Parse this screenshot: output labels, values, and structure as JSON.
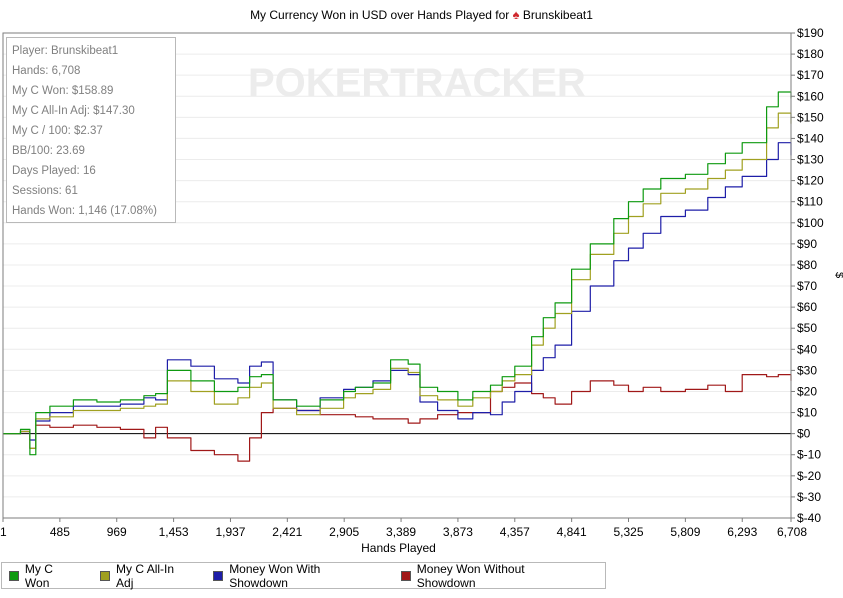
{
  "title_prefix": "My Currency Won in USD over Hands Played for",
  "title_suit": "♠",
  "title_player": "Brunskibeat1",
  "watermark": "POKERTRACKER",
  "stats": [
    "Player: Brunskibeat1",
    "Hands: 6,708",
    "My C Won: $158.89",
    "My C All-In Adj: $147.30",
    "My C / 100: $2.37",
    "BB/100: 23.69",
    "Days Played: 16",
    "Sessions: 61",
    "Hands Won: 1,146 (17.08%)"
  ],
  "colors": {
    "my_c_won": "#0e9a10",
    "all_in_adj": "#a0a020",
    "with_showdown": "#1e1ea8",
    "without_showdown": "#a01818"
  },
  "chart_data": {
    "type": "line",
    "title": "My Currency Won in USD over Hands Played for Brunskibeat1",
    "xlabel": "Hands Played",
    "ylabel": "$",
    "xlim": [
      1,
      6708
    ],
    "ylim": [
      -40,
      190
    ],
    "x_ticks": [
      1,
      485,
      969,
      1453,
      1937,
      2421,
      2905,
      3389,
      3873,
      4357,
      4841,
      5325,
      5809,
      6293,
      6708
    ],
    "x_tick_labels": [
      "1",
      "485",
      "969",
      "1,453",
      "1,937",
      "2,421",
      "2,905",
      "3,389",
      "3,873",
      "4,357",
      "4,841",
      "5,325",
      "5,809",
      "6,293",
      "6,708"
    ],
    "y_ticks": [
      190,
      180,
      170,
      160,
      150,
      140,
      130,
      120,
      110,
      100,
      90,
      80,
      70,
      60,
      50,
      40,
      30,
      20,
      10,
      0,
      -10,
      -20,
      -30,
      -40
    ],
    "y_tick_labels": [
      "$190",
      "$180",
      "$170",
      "$160",
      "$150",
      "$140",
      "$130",
      "$120",
      "$110",
      "$100",
      "$90",
      "$80",
      "$70",
      "$60",
      "$50",
      "$40",
      "$30",
      "$20",
      "$10",
      "$0",
      "$-10",
      "$-20",
      "$-30",
      "$-40"
    ],
    "grid": true,
    "legend_position": "bottom-left",
    "series": [
      {
        "name": "My C Won",
        "color": "#0e9a10",
        "x": [
          1,
          150,
          230,
          280,
          400,
          600,
          800,
          1000,
          1200,
          1300,
          1400,
          1600,
          1800,
          2000,
          2100,
          2200,
          2300,
          2500,
          2700,
          2900,
          3000,
          3150,
          3300,
          3450,
          3550,
          3700,
          3873,
          4000,
          4150,
          4250,
          4357,
          4500,
          4600,
          4700,
          4841,
          5000,
          5200,
          5325,
          5450,
          5600,
          5809,
          6000,
          6150,
          6293,
          6500,
          6600,
          6708
        ],
        "y": [
          0,
          2,
          -10,
          10,
          13,
          16,
          15,
          16,
          18,
          19,
          30,
          25,
          20,
          22,
          27,
          28,
          16,
          13,
          16,
          20,
          22,
          24,
          35,
          33,
          22,
          20,
          16,
          20,
          23,
          27,
          32,
          46,
          55,
          62,
          78,
          90,
          102,
          110,
          116,
          121,
          123,
          128,
          133,
          138,
          155,
          162,
          159
        ]
      },
      {
        "name": "My C All-In Adj",
        "color": "#a0a020",
        "x": [
          1,
          150,
          230,
          280,
          400,
          600,
          800,
          1000,
          1200,
          1300,
          1400,
          1600,
          1800,
          2000,
          2100,
          2200,
          2300,
          2500,
          2700,
          2900,
          3000,
          3150,
          3300,
          3450,
          3550,
          3700,
          3873,
          4000,
          4150,
          4250,
          4357,
          4500,
          4600,
          4700,
          4841,
          5000,
          5200,
          5325,
          5450,
          5600,
          5809,
          6000,
          6150,
          6293,
          6500,
          6600,
          6708
        ],
        "y": [
          0,
          1,
          -7,
          7,
          8,
          11,
          11,
          12,
          13,
          14,
          25,
          20,
          14,
          17,
          22,
          24,
          12,
          9,
          12,
          17,
          19,
          21,
          31,
          29,
          18,
          16,
          13,
          17,
          20,
          25,
          28,
          42,
          50,
          57,
          73,
          85,
          95,
          103,
          109,
          114,
          116,
          121,
          125,
          130,
          145,
          152,
          147
        ]
      },
      {
        "name": "Money Won With Showdown",
        "color": "#1e1ea8",
        "x": [
          1,
          150,
          230,
          280,
          400,
          600,
          800,
          1000,
          1200,
          1300,
          1400,
          1600,
          1800,
          2000,
          2100,
          2200,
          2300,
          2500,
          2700,
          2900,
          3000,
          3150,
          3300,
          3450,
          3550,
          3700,
          3873,
          4000,
          4150,
          4250,
          4357,
          4500,
          4600,
          4700,
          4841,
          5000,
          5200,
          5325,
          5450,
          5600,
          5809,
          6000,
          6150,
          6293,
          6500,
          6600,
          6708
        ],
        "y": [
          0,
          1,
          -3,
          6,
          10,
          13,
          13,
          14,
          17,
          16,
          35,
          32,
          26,
          24,
          32,
          34,
          16,
          11,
          17,
          21,
          22,
          25,
          30,
          28,
          15,
          11,
          7,
          10,
          9,
          15,
          20,
          30,
          36,
          42,
          58,
          70,
          82,
          88,
          95,
          103,
          106,
          112,
          117,
          122,
          130,
          138,
          132
        ]
      },
      {
        "name": "Money Won Without Showdown",
        "color": "#a01818",
        "x": [
          1,
          150,
          230,
          280,
          400,
          600,
          800,
          1000,
          1200,
          1300,
          1400,
          1600,
          1800,
          2000,
          2100,
          2200,
          2300,
          2500,
          2700,
          2900,
          3000,
          3150,
          3300,
          3450,
          3550,
          3700,
          3873,
          4000,
          4150,
          4250,
          4357,
          4500,
          4600,
          4700,
          4841,
          5000,
          5200,
          5325,
          5450,
          5600,
          5809,
          6000,
          6150,
          6293,
          6500,
          6600,
          6708
        ],
        "y": [
          0,
          1,
          -7,
          4,
          3,
          4,
          3,
          2,
          -2,
          3,
          -2,
          -8,
          -10,
          -13,
          -2,
          10,
          12,
          11,
          9,
          9,
          8,
          7,
          7,
          5,
          7,
          9,
          10,
          10,
          20,
          22,
          24,
          19,
          17,
          14,
          20,
          25,
          23,
          20,
          22,
          20,
          21,
          23,
          20,
          28,
          27,
          28,
          25
        ]
      }
    ]
  }
}
